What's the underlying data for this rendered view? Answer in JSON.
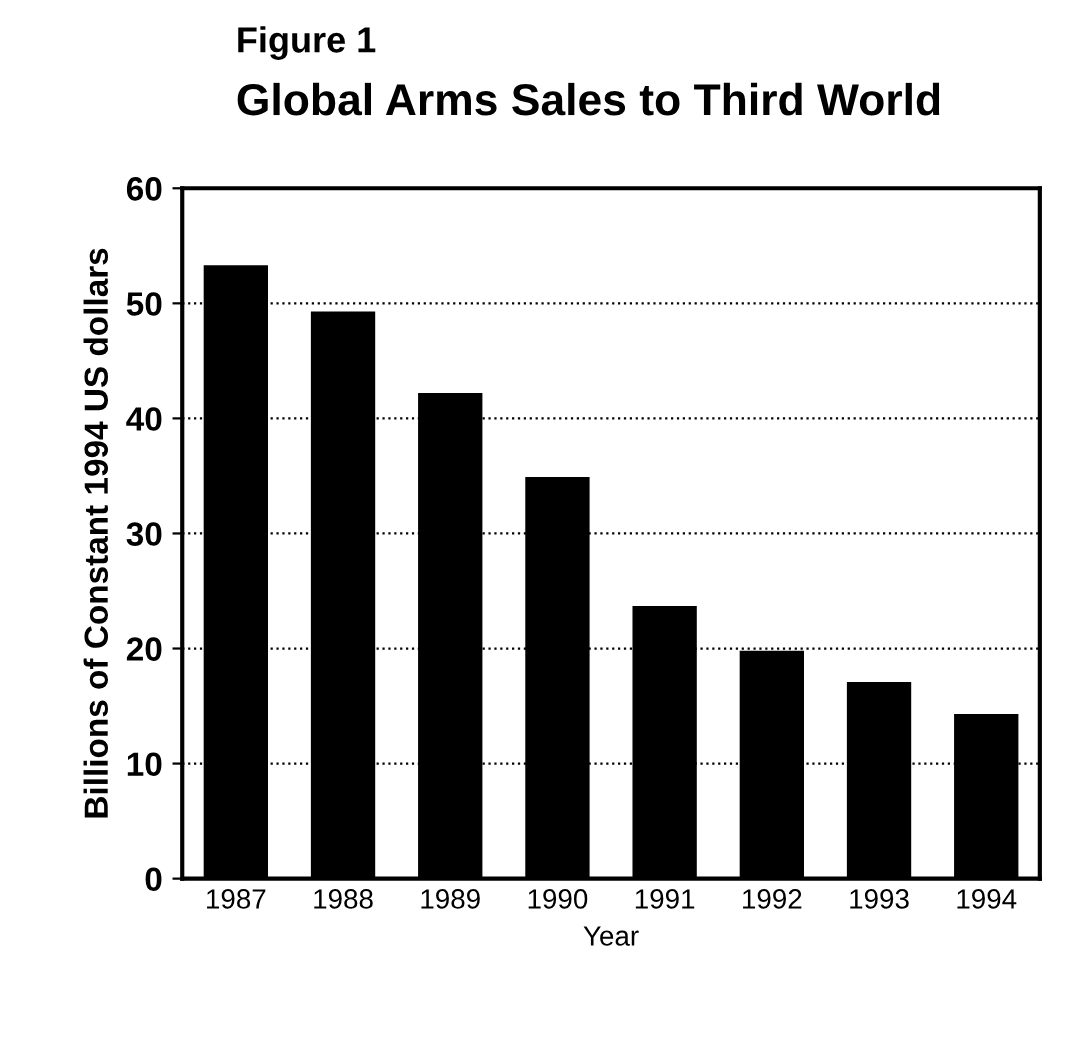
{
  "chart_data": {
    "type": "bar",
    "title": "Figure 1",
    "subtitle": "Global Arms Sales to Third World",
    "xlabel": "Year",
    "ylabel": "Billions of Constant 1994 US dollars",
    "categories": [
      "1987",
      "1988",
      "1989",
      "1990",
      "1991",
      "1992",
      "1993",
      "1994"
    ],
    "values": [
      53.3,
      49.3,
      42.2,
      34.9,
      23.7,
      19.8,
      17.1,
      14.3
    ],
    "color": "#000000",
    "ylim": [
      0,
      60
    ],
    "yticks": [
      0,
      10,
      20,
      30,
      40,
      50,
      60
    ],
    "grid": "y"
  }
}
